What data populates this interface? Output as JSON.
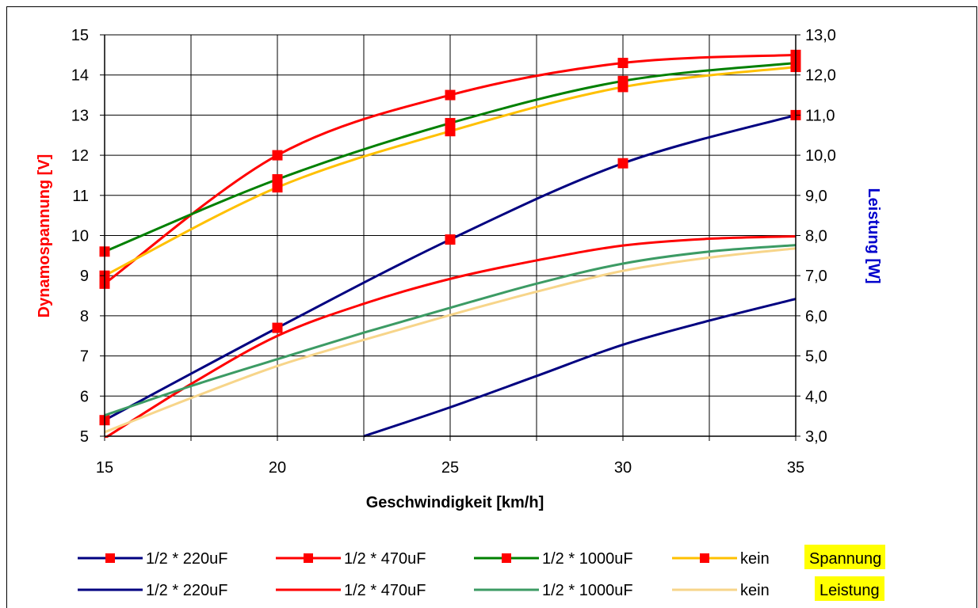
{
  "chart_data": {
    "type": "line",
    "xlabel": "Geschwindigkeit [km/h]",
    "ylabel_left": "Dynamospannung [V]",
    "ylabel_right": "Leistung [W]",
    "colors": {
      "ylabel_left": "#ff0000",
      "ylabel_right": "#0000cc",
      "highlight_bg": "#ffff00"
    },
    "xlim": [
      15,
      35
    ],
    "ylim_left": [
      5,
      15
    ],
    "ylim_right": [
      3.0,
      13.0
    ],
    "x_ticks": [
      "15",
      "20",
      "25",
      "30",
      "35"
    ],
    "y_left_ticks": [
      "5",
      "6",
      "7",
      "8",
      "9",
      "10",
      "11",
      "12",
      "13",
      "14",
      "15"
    ],
    "y_right_ticks": [
      "3,0",
      "4,0",
      "5,0",
      "6,0",
      "7,0",
      "8,0",
      "9,0",
      "10,0",
      "11,0",
      "12,0",
      "13,0"
    ],
    "grid": true,
    "legend_position": "bottom",
    "legend_group_labels": [
      "Spannung",
      "Leistung"
    ],
    "series": [
      {
        "name": "1/2 * 220uF",
        "group": "Spannung",
        "axis": "left",
        "color": "#000080",
        "markers": true,
        "x": [
          15,
          20,
          25,
          30,
          35
        ],
        "y": [
          5.4,
          7.7,
          9.9,
          11.8,
          13.0
        ]
      },
      {
        "name": "1/2 * 470uF",
        "group": "Spannung",
        "axis": "left",
        "color": "#ff0000",
        "markers": true,
        "x": [
          15,
          20,
          25,
          30,
          35
        ],
        "y": [
          8.8,
          12.0,
          13.5,
          14.3,
          14.5
        ]
      },
      {
        "name": "1/2 * 1000uF",
        "group": "Spannung",
        "axis": "left",
        "color": "#008000",
        "markers": true,
        "x": [
          15,
          20,
          25,
          30,
          35
        ],
        "y": [
          9.6,
          11.4,
          12.8,
          13.85,
          14.3
        ]
      },
      {
        "name": "kein",
        "group": "Spannung",
        "axis": "left",
        "color": "#ffc000",
        "markers": true,
        "x": [
          15,
          20,
          25,
          30,
          35
        ],
        "y": [
          9.0,
          11.2,
          12.6,
          13.7,
          14.2
        ]
      },
      {
        "name": "1/2 * 220uF",
        "group": "Leistung",
        "axis": "right",
        "color": "#000080",
        "markers": false,
        "x": [
          22.5,
          25,
          27.5,
          30,
          32.5,
          35
        ],
        "y": [
          3.0,
          3.72,
          4.5,
          5.28,
          5.88,
          6.42
        ]
      },
      {
        "name": "1/2 * 470uF",
        "group": "Leistung",
        "axis": "right",
        "color": "#ff0000",
        "markers": false,
        "x": [
          15,
          17.5,
          20,
          22.5,
          25,
          27.5,
          30,
          32.5,
          35
        ],
        "y": [
          2.95,
          4.3,
          5.5,
          6.3,
          6.92,
          7.38,
          7.75,
          7.92,
          7.98
        ]
      },
      {
        "name": "1/2 * 1000uF",
        "group": "Leistung",
        "axis": "right",
        "color": "#3c9b64",
        "markers": false,
        "x": [
          15,
          17.5,
          20,
          22.5,
          25,
          27.5,
          30,
          32.5,
          35
        ],
        "y": [
          3.52,
          4.25,
          4.92,
          5.58,
          6.2,
          6.8,
          7.3,
          7.6,
          7.76
        ]
      },
      {
        "name": "kein",
        "group": "Leistung",
        "axis": "right",
        "color": "#f7d58a",
        "markers": false,
        "x": [
          15,
          17.5,
          20,
          22.5,
          25,
          27.5,
          30,
          32.5,
          35
        ],
        "y": [
          3.1,
          3.95,
          4.75,
          5.4,
          6.02,
          6.6,
          7.12,
          7.45,
          7.68
        ]
      }
    ]
  }
}
